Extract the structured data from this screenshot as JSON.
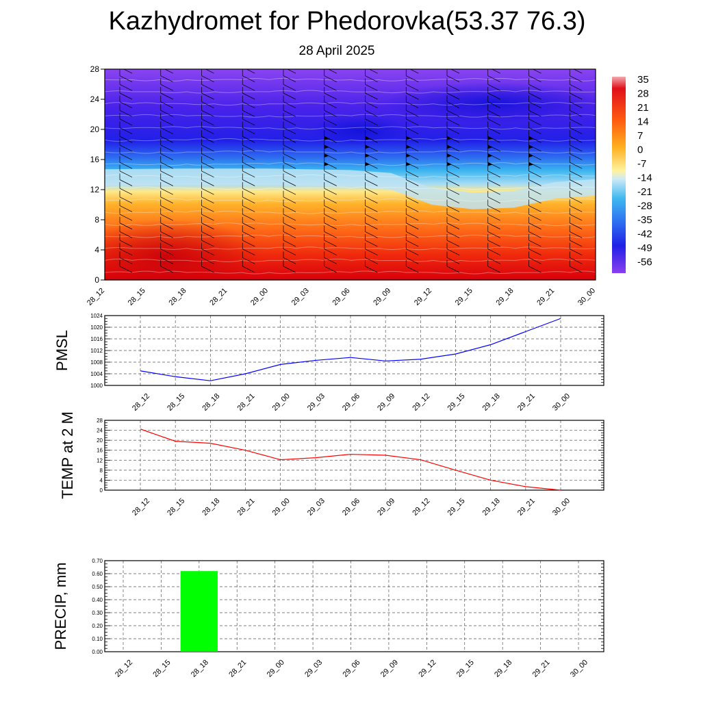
{
  "title": "Kazhydromet for Phedorovka(53.37 76.3)",
  "subtitle": "28 April 2025",
  "time_labels": [
    "28_12",
    "28_15",
    "28_18",
    "28_21",
    "29_00",
    "29_03",
    "29_06",
    "29_09",
    "29_12",
    "29_15",
    "29_18",
    "29_21",
    "30_00"
  ],
  "colors": {
    "pmsl_line": "#0000ff",
    "temp_line": "#ff0000",
    "precip_bar": "#00ff00"
  },
  "chart_data": [
    {
      "type": "heatmap",
      "title": "Kazhydromet for Phedorovka(53.37 76.3)",
      "subtitle": "28 April 2025",
      "categories": [
        "28_12",
        "28_15",
        "28_18",
        "28_21",
        "29_00",
        "29_03",
        "29_06",
        "29_09",
        "29_12",
        "29_15",
        "29_18",
        "29_21",
        "30_00"
      ],
      "ylim": [
        0,
        28
      ],
      "yticks": [
        0,
        4,
        8,
        12,
        16,
        20,
        24,
        28
      ],
      "colorbar_labels": [
        "35",
        "28",
        "21",
        "14",
        "7",
        "0",
        "-7",
        "-14",
        "-21",
        "-28",
        "-35",
        "-42",
        "-49",
        "-56"
      ],
      "colorbar_stops": [
        "#8a3ff0",
        "#4a1ae8",
        "#1f1fe6",
        "#2d6ef0",
        "#2fb0f0",
        "#a9dcf2",
        "#fff6a8",
        "#ffd23a",
        "#ff9e20",
        "#ff5e10",
        "#e81e0c",
        "#d8000c",
        "#f0a0a8"
      ],
      "freezing_level_series": [
        {
          "name": "",
          "x": [
            "28_12",
            "28_18",
            "29_00",
            "29_06",
            "29_09",
            "29_12",
            "29_15",
            "29_18",
            "29_21",
            "30_00"
          ],
          "values": [
            12.5,
            12.6,
            12.6,
            12.4,
            12.0,
            10.0,
            9.4,
            9.6,
            10.8,
            11.2
          ]
        }
      ],
      "grid": false
    },
    {
      "type": "line",
      "ylabel": "PMSL",
      "categories": [
        "28_12",
        "28_15",
        "28_18",
        "28_21",
        "29_00",
        "29_03",
        "29_06",
        "29_09",
        "29_12",
        "29_15",
        "29_18",
        "29_21",
        "30_00"
      ],
      "series": [
        {
          "name": "",
          "values": [
            1005.0,
            1003.0,
            1001.6,
            1004.0,
            1007.2,
            1008.6,
            1009.6,
            1008.4,
            1009.0,
            1010.8,
            1014.0,
            1018.5,
            1023.0
          ]
        }
      ],
      "ylim": [
        1000,
        1024
      ],
      "yticks": [
        "1000",
        "1004",
        "1008",
        "1012",
        "1016",
        "1020",
        "1024"
      ],
      "grid": true
    },
    {
      "type": "line",
      "ylabel": "TEMP at 2 M",
      "categories": [
        "28_12",
        "28_15",
        "28_18",
        "28_21",
        "29_00",
        "29_03",
        "29_06",
        "29_09",
        "29_12",
        "29_15",
        "29_18",
        "29_21",
        "30_00"
      ],
      "series": [
        {
          "name": "",
          "values": [
            24.5,
            19.6,
            18.8,
            16.0,
            12.2,
            13.0,
            14.4,
            14.0,
            12.2,
            8.0,
            4.0,
            1.4,
            0.0
          ]
        }
      ],
      "ylim": [
        0,
        28
      ],
      "yticks": [
        "0",
        "4",
        "8",
        "12",
        "16",
        "20",
        "24",
        "28"
      ],
      "grid": true
    },
    {
      "type": "bar",
      "ylabel": "PRECIP, mm",
      "categories": [
        "28_12",
        "28_15",
        "28_18",
        "28_21",
        "29_00",
        "29_03",
        "29_06",
        "29_09",
        "29_12",
        "29_15",
        "29_18",
        "29_21",
        "30_00"
      ],
      "values": [
        0,
        0,
        0.62,
        0,
        0,
        0,
        0,
        0,
        0,
        0,
        0,
        0,
        0
      ],
      "ylim": [
        0,
        0.7
      ],
      "yticks": [
        "0.00",
        "0.10",
        "0.20",
        "0.30",
        "0.40",
        "0.50",
        "0.60",
        "0.70"
      ],
      "grid": true
    }
  ]
}
